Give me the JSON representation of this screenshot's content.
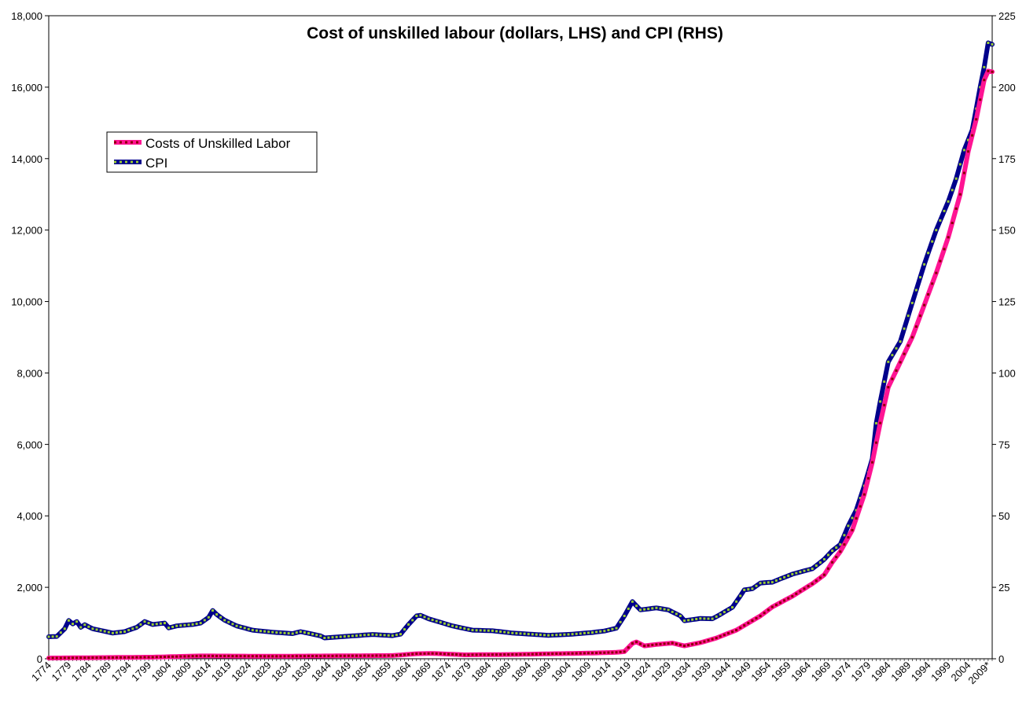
{
  "chart_data": {
    "type": "line",
    "title": "Cost of unskilled labour (dollars, LHS) and CPI (RHS)",
    "x_labels": [
      "1774",
      "1779",
      "1784",
      "1789",
      "1794",
      "1799",
      "1804",
      "1809",
      "1814",
      "1819",
      "1824",
      "1829",
      "1834",
      "1839",
      "1844",
      "1849",
      "1854",
      "1859",
      "1864",
      "1869",
      "1874",
      "1879",
      "1884",
      "1889",
      "1894",
      "1899",
      "1904",
      "1909",
      "1914",
      "1919",
      "1924",
      "1929",
      "1934",
      "1939",
      "1944",
      "1949",
      "1954",
      "1959",
      "1964",
      "1969",
      "1974",
      "1979",
      "1984",
      "1989",
      "1994",
      "1999",
      "2004",
      "2009*"
    ],
    "y_left": {
      "min": 0,
      "max": 18000,
      "ticks": [
        "0",
        "2,000",
        "4,000",
        "6,000",
        "8,000",
        "10,000",
        "12,000",
        "14,000",
        "16,000",
        "18,000"
      ]
    },
    "y_right": {
      "min": 0,
      "max": 225,
      "ticks": [
        "0",
        "25",
        "50",
        "75",
        "100",
        "125",
        "150",
        "175",
        "200",
        "225"
      ]
    },
    "legend": {
      "position": "upper-left"
    },
    "series": [
      {
        "name": "Costs of Unskilled Labor",
        "axis": "left",
        "color": "#ff1493",
        "marker_color": "#8b0000",
        "anchors": [
          [
            1774,
            20
          ],
          [
            1800,
            45
          ],
          [
            1812,
            80
          ],
          [
            1830,
            70
          ],
          [
            1860,
            90
          ],
          [
            1866,
            140
          ],
          [
            1870,
            150
          ],
          [
            1878,
            110
          ],
          [
            1890,
            120
          ],
          [
            1910,
            160
          ],
          [
            1916,
            180
          ],
          [
            1918,
            200
          ],
          [
            1920,
            430
          ],
          [
            1921,
            470
          ],
          [
            1923,
            360
          ],
          [
            1926,
            400
          ],
          [
            1930,
            440
          ],
          [
            1933,
            360
          ],
          [
            1937,
            450
          ],
          [
            1941,
            580
          ],
          [
            1946,
            800
          ],
          [
            1949,
            1000
          ],
          [
            1952,
            1200
          ],
          [
            1955,
            1450
          ],
          [
            1960,
            1750
          ],
          [
            1965,
            2100
          ],
          [
            1968,
            2350
          ],
          [
            1970,
            2700
          ],
          [
            1972,
            3000
          ],
          [
            1975,
            3600
          ],
          [
            1978,
            4600
          ],
          [
            1980,
            5500
          ],
          [
            1982,
            6600
          ],
          [
            1984,
            7600
          ],
          [
            1987,
            8300
          ],
          [
            1990,
            9000
          ],
          [
            1993,
            9900
          ],
          [
            1996,
            10800
          ],
          [
            1999,
            11800
          ],
          [
            2002,
            13000
          ],
          [
            2004,
            14200
          ],
          [
            2006,
            15100
          ],
          [
            2008,
            16200
          ],
          [
            2009,
            16450
          ],
          [
            2010,
            16430
          ]
        ]
      },
      {
        "name": "CPI",
        "axis": "right",
        "color": "#00008b",
        "marker_color": "#9acd32",
        "anchors": [
          [
            1774,
            7.7
          ],
          [
            1776,
            7.8
          ],
          [
            1778,
            10.5
          ],
          [
            1779,
            13.4
          ],
          [
            1780,
            12.2
          ],
          [
            1781,
            13.0
          ],
          [
            1782,
            11.0
          ],
          [
            1783,
            11.9
          ],
          [
            1785,
            10.5
          ],
          [
            1790,
            9.0
          ],
          [
            1793,
            9.5
          ],
          [
            1796,
            11.0
          ],
          [
            1798,
            13.0
          ],
          [
            1800,
            12.0
          ],
          [
            1803,
            12.5
          ],
          [
            1804,
            10.8
          ],
          [
            1806,
            11.5
          ],
          [
            1810,
            12.0
          ],
          [
            1812,
            12.5
          ],
          [
            1814,
            14.5
          ],
          [
            1815,
            16.9
          ],
          [
            1816,
            15.5
          ],
          [
            1818,
            13.5
          ],
          [
            1821,
            11.5
          ],
          [
            1825,
            10.0
          ],
          [
            1830,
            9.3
          ],
          [
            1835,
            8.8
          ],
          [
            1837,
            9.5
          ],
          [
            1842,
            8.0
          ],
          [
            1843,
            7.3
          ],
          [
            1848,
            7.8
          ],
          [
            1855,
            8.5
          ],
          [
            1860,
            8.1
          ],
          [
            1862,
            8.6
          ],
          [
            1864,
            12.0
          ],
          [
            1866,
            15.0
          ],
          [
            1867,
            15.2
          ],
          [
            1869,
            14.0
          ],
          [
            1875,
            11.5
          ],
          [
            1880,
            10.0
          ],
          [
            1885,
            9.8
          ],
          [
            1890,
            9.0
          ],
          [
            1899,
            8.2
          ],
          [
            1905,
            8.6
          ],
          [
            1910,
            9.2
          ],
          [
            1913,
            9.7
          ],
          [
            1916,
            10.7
          ],
          [
            1918,
            15.0
          ],
          [
            1920,
            20.0
          ],
          [
            1921,
            18.5
          ],
          [
            1922,
            17.1
          ],
          [
            1926,
            17.8
          ],
          [
            1929,
            17.1
          ],
          [
            1932,
            15.0
          ],
          [
            1933,
            13.3
          ],
          [
            1937,
            14.1
          ],
          [
            1940,
            14.0
          ],
          [
            1942,
            15.5
          ],
          [
            1945,
            18.0
          ],
          [
            1947,
            22.0
          ],
          [
            1948,
            24.1
          ],
          [
            1950,
            24.5
          ],
          [
            1952,
            26.5
          ],
          [
            1955,
            26.8
          ],
          [
            1958,
            28.5
          ],
          [
            1960,
            29.6
          ],
          [
            1965,
            31.5
          ],
          [
            1968,
            34.8
          ],
          [
            1970,
            37.8
          ],
          [
            1972,
            40.0
          ],
          [
            1974,
            46.5
          ],
          [
            1976,
            52.0
          ],
          [
            1978,
            60.5
          ],
          [
            1980,
            70.0
          ],
          [
            1981,
            82.4
          ],
          [
            1982,
            90.0
          ],
          [
            1984,
            103.9
          ],
          [
            1987,
            111.0
          ],
          [
            1990,
            124.5
          ],
          [
            1993,
            138.0
          ],
          [
            1996,
            150.0
          ],
          [
            1999,
            160.0
          ],
          [
            2001,
            168.0
          ],
          [
            2003,
            178.0
          ],
          [
            2005,
            185.0
          ],
          [
            2007,
            200.0
          ],
          [
            2008,
            207.0
          ],
          [
            2009,
            215.5
          ],
          [
            2010,
            215.0
          ]
        ]
      }
    ]
  }
}
